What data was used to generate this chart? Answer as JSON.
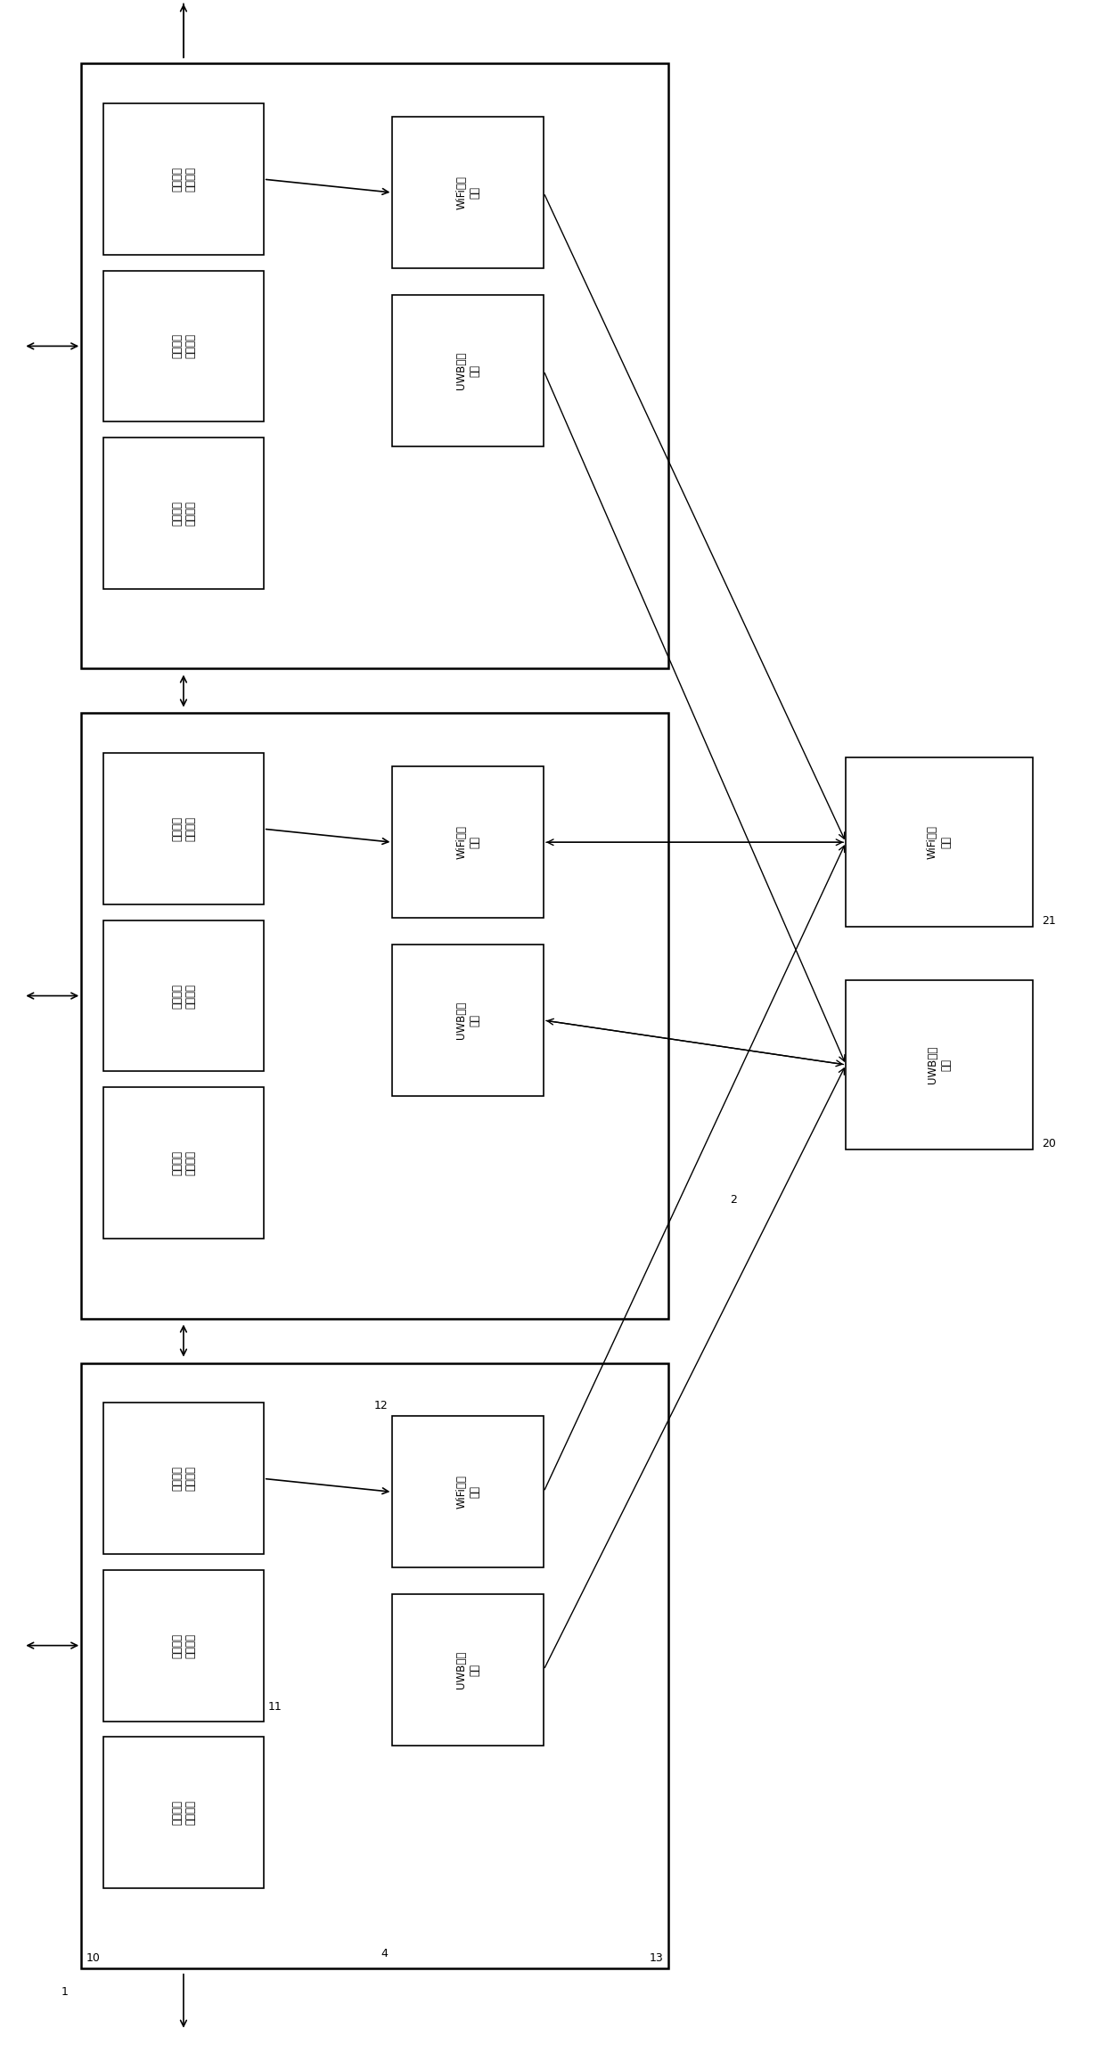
{
  "bg_color": "#ffffff",
  "lc": "#000000",
  "wired_labels": [
    "三级有线\n通讯模块",
    "二级有线\n通讯模块",
    "一级有线\n通讯模块"
  ],
  "wireless_labels": [
    "WiFi通讯\n模块",
    "UWB通讯\n模块"
  ],
  "right_labels": [
    "WiFi通讯\n模块",
    "UWB通讯\n模块"
  ],
  "num_groups": 3,
  "fig_width": 12.4,
  "fig_height": 22.95,
  "dpi": 100
}
